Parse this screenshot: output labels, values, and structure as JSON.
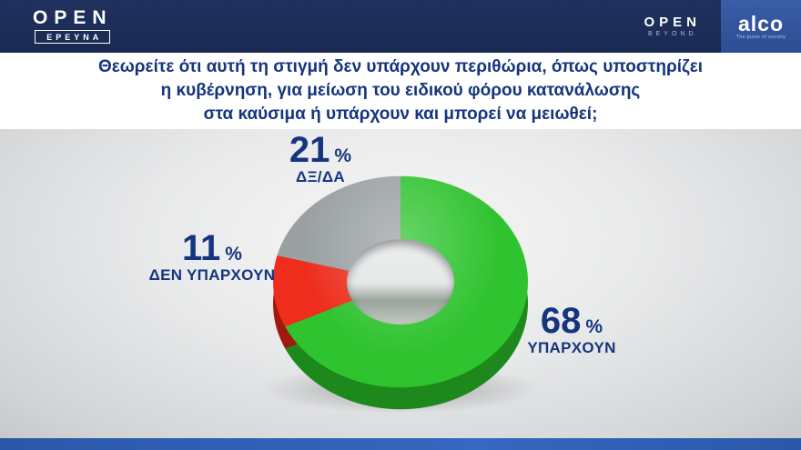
{
  "header": {
    "left_brand": "OPEN",
    "left_sub": "ΕΡΕΥΝΑ",
    "right_brand": "OPEN",
    "right_sub": "BEYOND",
    "partner_name": "alco",
    "partner_tagline": "The pulse of society"
  },
  "question": {
    "lines": [
      "Θεωρείτε ότι αυτή τη στιγμή δεν υπάρχουν περιθώρια, όπως υποστηρίζει",
      "η κυβέρνηση, για μείωση του ειδικού φόρου κατανάλωσης",
      "στα καύσιμα ή υπάρχουν και μπορεί να μειωθεί;"
    ]
  },
  "chart_data": {
    "type": "pie",
    "variant": "donut-3d",
    "title": "Θεωρείτε ότι αυτή τη στιγμή δεν υπάρχουν περιθώρια, όπως υποστηρίζει η κυβέρνηση, για μείωση του ειδικού φόρου κατανάλωσης στα καύσιμα ή υπάρχουν και μπορεί να μειωθεί;",
    "start_angle_deg": 0,
    "direction": "clockwise",
    "legend": "none",
    "label_color": "#15357e",
    "slices": [
      {
        "label": "ΥΠΑΡΧΟΥΝ",
        "value": 68,
        "unit": "%",
        "color": "#2fc32f",
        "color_dark": "#1e8f1e"
      },
      {
        "label": "ΔΕΝ ΥΠΑΡΧΟΥΝ",
        "value": 11,
        "unit": "%",
        "color": "#ee2d1d",
        "color_dark": "#a81a0e"
      },
      {
        "label": "ΔΞ/ΔΑ",
        "value": 21,
        "unit": "%",
        "color": "#9aa0a2",
        "color_dark": "#6e7577"
      }
    ]
  }
}
